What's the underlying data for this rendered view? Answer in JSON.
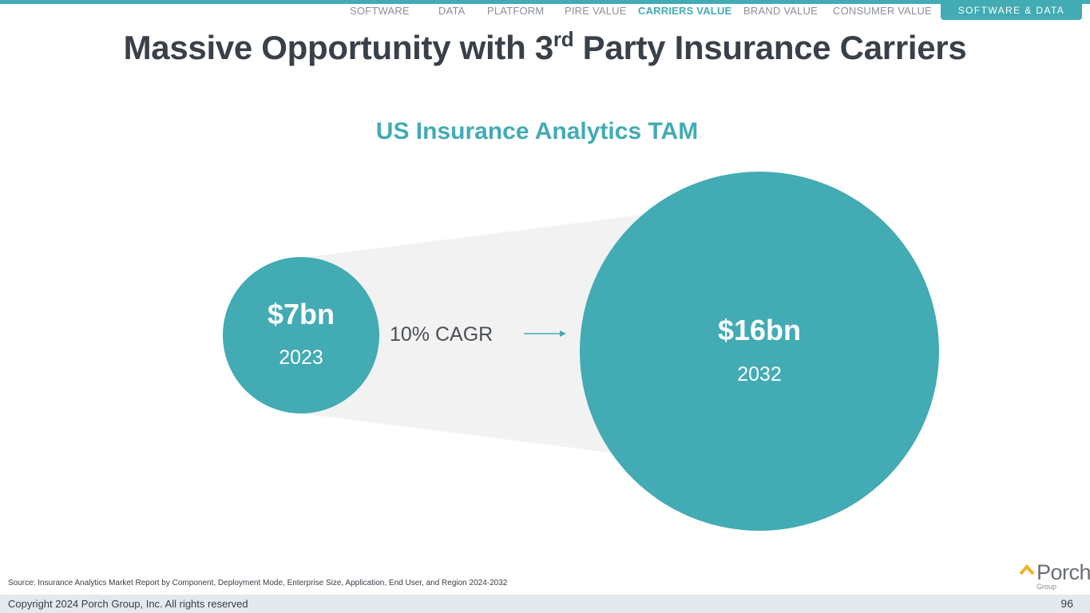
{
  "nav": {
    "items": [
      "SOFTWARE",
      "DATA",
      "PLATFORM",
      "PIRE VALUE",
      "CARRIERS VALUE",
      "BRAND VALUE",
      "CONSUMER VALUE"
    ],
    "active": "CARRIERS VALUE",
    "section_pill": "SOFTWARE & DATA"
  },
  "title": {
    "prefix": "Massive Opportunity with 3",
    "superscript": "rd",
    "suffix": " Party Insurance Carriers"
  },
  "subtitle": "US Insurance Analytics TAM",
  "chart_data": {
    "type": "bubble",
    "title": "US Insurance Analytics TAM",
    "unit": "USD bn",
    "points": [
      {
        "label": "$7bn",
        "year": "2023",
        "value": 7
      },
      {
        "label": "$16bn",
        "year": "2032",
        "value": 16
      }
    ],
    "growth_label": "10% CAGR"
  },
  "colors": {
    "accent": "#42abb4",
    "title": "#3a4049",
    "funnel": "#f2f2f2",
    "footer_bg": "#e4e8ef"
  },
  "logo": {
    "name": "Porch",
    "sub": "Group"
  },
  "source": "Source: Insurance Analytics Market Report by Component, Deployment Mode, Enterprise Size, Application, End User, and Region 2024-2032",
  "footer": {
    "copyright": "Copyright 2024 Porch Group, Inc. All rights reserved",
    "page_number": "96"
  }
}
